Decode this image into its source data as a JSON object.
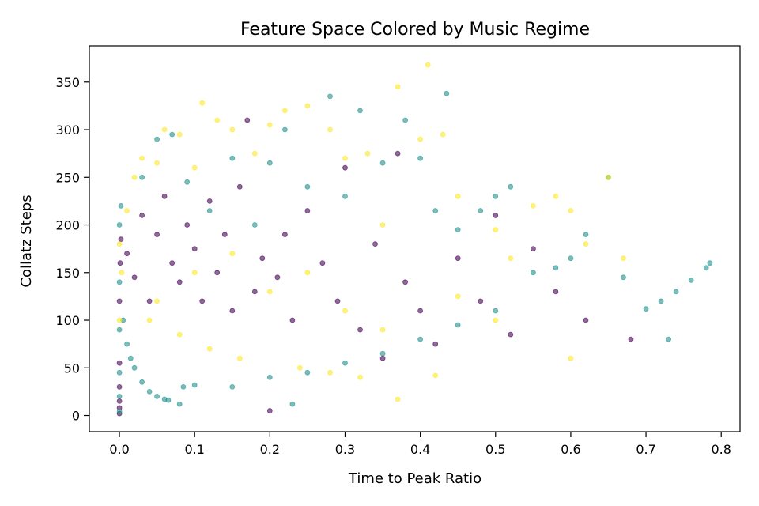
{
  "chart_data": {
    "type": "scatter",
    "title": "Feature Space Colored by Music Regime",
    "xlabel": "Time to Peak Ratio",
    "ylabel": "Collatz Steps",
    "xlim": [
      -0.04,
      0.825
    ],
    "ylim": [
      -17,
      388
    ],
    "xticks": [
      0.0,
      0.1,
      0.2,
      0.3,
      0.4,
      0.5,
      0.6,
      0.7,
      0.8
    ],
    "xtick_labels": [
      "0.0",
      "0.1",
      "0.2",
      "0.3",
      "0.4",
      "0.5",
      "0.6",
      "0.7",
      "0.8"
    ],
    "yticks": [
      0,
      50,
      100,
      150,
      200,
      250,
      300,
      350
    ],
    "ytick_labels": [
      "0",
      "50",
      "100",
      "150",
      "200",
      "250",
      "300",
      "350"
    ],
    "grid": false,
    "marker_alpha": 0.6,
    "colors": [
      "#440154",
      "#21918c",
      "#fde725"
    ],
    "series": [
      {
        "color": "#440154",
        "points": [
          [
            0.0,
            2
          ],
          [
            0.0,
            8
          ],
          [
            0.0,
            15
          ],
          [
            0.0,
            30
          ],
          [
            0.0,
            55
          ],
          [
            0.0,
            120
          ],
          [
            0.001,
            160
          ],
          [
            0.002,
            185
          ],
          [
            0.01,
            170
          ],
          [
            0.02,
            145
          ],
          [
            0.03,
            210
          ],
          [
            0.04,
            120
          ],
          [
            0.05,
            190
          ],
          [
            0.06,
            230
          ],
          [
            0.07,
            160
          ],
          [
            0.08,
            140
          ],
          [
            0.09,
            200
          ],
          [
            0.1,
            175
          ],
          [
            0.11,
            120
          ],
          [
            0.12,
            225
          ],
          [
            0.13,
            150
          ],
          [
            0.14,
            190
          ],
          [
            0.15,
            110
          ],
          [
            0.16,
            240
          ],
          [
            0.17,
            310
          ],
          [
            0.18,
            130
          ],
          [
            0.19,
            165
          ],
          [
            0.2,
            5
          ],
          [
            0.21,
            145
          ],
          [
            0.22,
            190
          ],
          [
            0.23,
            100
          ],
          [
            0.25,
            215
          ],
          [
            0.27,
            160
          ],
          [
            0.29,
            120
          ],
          [
            0.3,
            260
          ],
          [
            0.32,
            90
          ],
          [
            0.34,
            180
          ],
          [
            0.35,
            60
          ],
          [
            0.37,
            275
          ],
          [
            0.38,
            140
          ],
          [
            0.4,
            110
          ],
          [
            0.42,
            75
          ],
          [
            0.45,
            165
          ],
          [
            0.48,
            120
          ],
          [
            0.5,
            210
          ],
          [
            0.52,
            85
          ],
          [
            0.55,
            175
          ],
          [
            0.58,
            130
          ],
          [
            0.62,
            100
          ],
          [
            0.68,
            80
          ]
        ]
      },
      {
        "color": "#21918c",
        "points": [
          [
            0.0,
            4
          ],
          [
            0.0,
            20
          ],
          [
            0.0,
            45
          ],
          [
            0.0,
            90
          ],
          [
            0.0,
            140
          ],
          [
            0.0,
            200
          ],
          [
            0.002,
            220
          ],
          [
            0.005,
            100
          ],
          [
            0.01,
            75
          ],
          [
            0.015,
            60
          ],
          [
            0.02,
            50
          ],
          [
            0.03,
            35
          ],
          [
            0.04,
            25
          ],
          [
            0.05,
            20
          ],
          [
            0.06,
            17
          ],
          [
            0.065,
            16
          ],
          [
            0.08,
            12
          ],
          [
            0.05,
            290
          ],
          [
            0.07,
            295
          ],
          [
            0.03,
            250
          ],
          [
            0.09,
            245
          ],
          [
            0.12,
            215
          ],
          [
            0.15,
            270
          ],
          [
            0.18,
            200
          ],
          [
            0.2,
            265
          ],
          [
            0.22,
            300
          ],
          [
            0.25,
            240
          ],
          [
            0.28,
            335
          ],
          [
            0.3,
            230
          ],
          [
            0.32,
            320
          ],
          [
            0.35,
            265
          ],
          [
            0.38,
            310
          ],
          [
            0.4,
            270
          ],
          [
            0.42,
            215
          ],
          [
            0.435,
            338
          ],
          [
            0.45,
            195
          ],
          [
            0.48,
            215
          ],
          [
            0.5,
            230
          ],
          [
            0.52,
            240
          ],
          [
            0.55,
            150
          ],
          [
            0.58,
            155
          ],
          [
            0.6,
            165
          ],
          [
            0.62,
            190
          ],
          [
            0.65,
            250
          ],
          [
            0.67,
            145
          ],
          [
            0.7,
            112
          ],
          [
            0.72,
            120
          ],
          [
            0.74,
            130
          ],
          [
            0.76,
            142
          ],
          [
            0.78,
            155
          ],
          [
            0.785,
            160
          ],
          [
            0.73,
            80
          ],
          [
            0.5,
            110
          ],
          [
            0.45,
            95
          ],
          [
            0.4,
            80
          ],
          [
            0.35,
            65
          ],
          [
            0.3,
            55
          ],
          [
            0.25,
            45
          ],
          [
            0.2,
            40
          ],
          [
            0.15,
            30
          ],
          [
            0.1,
            32
          ],
          [
            0.085,
            30
          ],
          [
            0.23,
            12
          ]
        ]
      },
      {
        "color": "#fde725",
        "points": [
          [
            0.0,
            100
          ],
          [
            0.0,
            180
          ],
          [
            0.003,
            150
          ],
          [
            0.01,
            215
          ],
          [
            0.02,
            250
          ],
          [
            0.03,
            270
          ],
          [
            0.05,
            265
          ],
          [
            0.06,
            300
          ],
          [
            0.08,
            295
          ],
          [
            0.1,
            260
          ],
          [
            0.11,
            328
          ],
          [
            0.13,
            310
          ],
          [
            0.15,
            300
          ],
          [
            0.18,
            275
          ],
          [
            0.2,
            305
          ],
          [
            0.22,
            320
          ],
          [
            0.25,
            325
          ],
          [
            0.28,
            300
          ],
          [
            0.3,
            270
          ],
          [
            0.33,
            275
          ],
          [
            0.35,
            200
          ],
          [
            0.37,
            345
          ],
          [
            0.4,
            290
          ],
          [
            0.41,
            368
          ],
          [
            0.43,
            295
          ],
          [
            0.45,
            230
          ],
          [
            0.5,
            195
          ],
          [
            0.52,
            165
          ],
          [
            0.55,
            220
          ],
          [
            0.58,
            230
          ],
          [
            0.6,
            215
          ],
          [
            0.62,
            180
          ],
          [
            0.65,
            250
          ],
          [
            0.67,
            165
          ],
          [
            0.6,
            60
          ],
          [
            0.42,
            42
          ],
          [
            0.37,
            17
          ],
          [
            0.45,
            125
          ],
          [
            0.5,
            100
          ],
          [
            0.35,
            90
          ],
          [
            0.3,
            110
          ],
          [
            0.25,
            150
          ],
          [
            0.2,
            130
          ],
          [
            0.15,
            170
          ],
          [
            0.1,
            150
          ],
          [
            0.05,
            120
          ],
          [
            0.04,
            100
          ],
          [
            0.08,
            85
          ],
          [
            0.12,
            70
          ],
          [
            0.16,
            60
          ],
          [
            0.24,
            50
          ],
          [
            0.28,
            45
          ],
          [
            0.32,
            40
          ]
        ]
      }
    ]
  }
}
